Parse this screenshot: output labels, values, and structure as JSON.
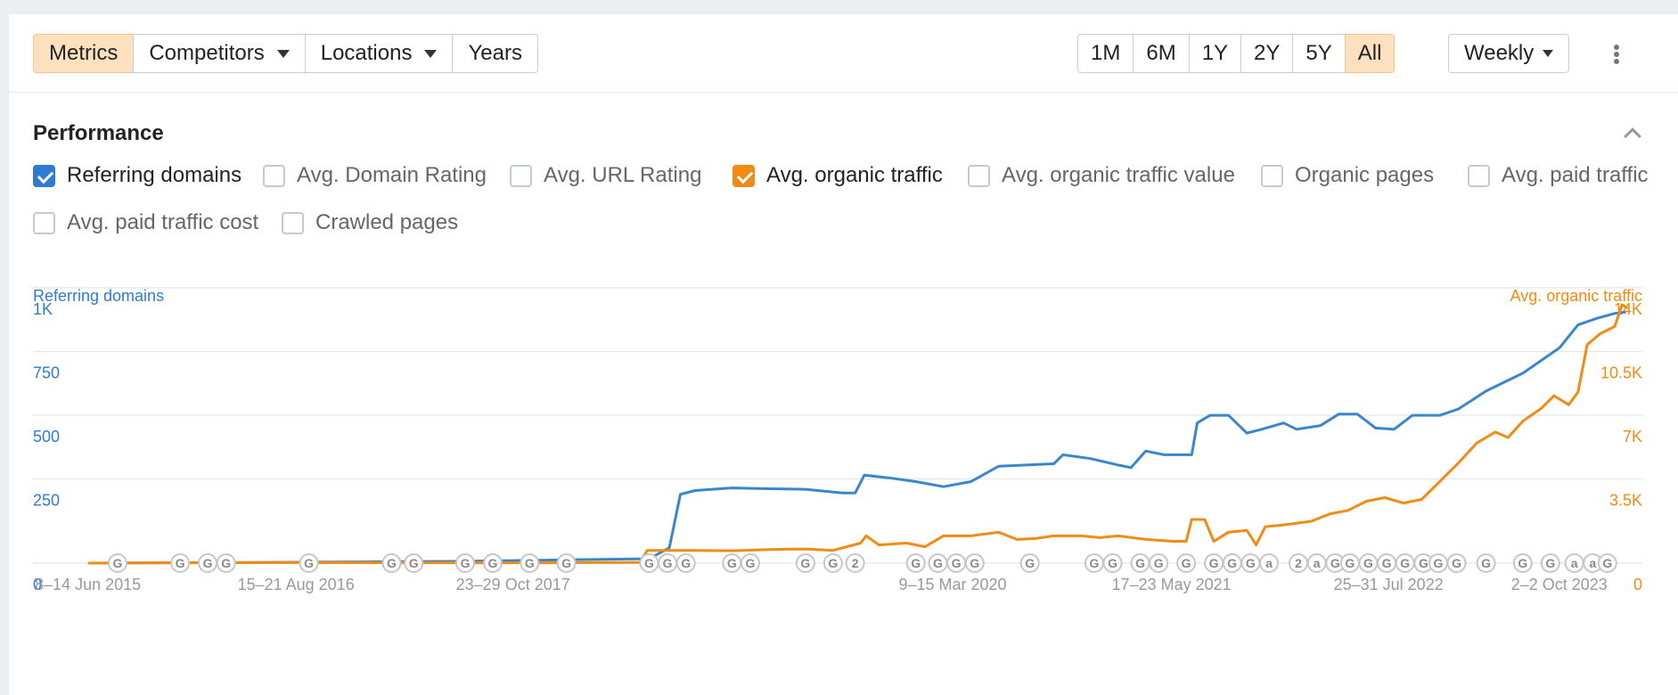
{
  "toolbar": {
    "view_tabs": [
      {
        "label": "Metrics",
        "active": true,
        "dropdown": false
      },
      {
        "label": "Competitors",
        "active": false,
        "dropdown": true
      },
      {
        "label": "Locations",
        "active": false,
        "dropdown": true
      },
      {
        "label": "Years",
        "active": false,
        "dropdown": false
      }
    ],
    "ranges": [
      {
        "label": "1M",
        "active": false
      },
      {
        "label": "6M",
        "active": false
      },
      {
        "label": "1Y",
        "active": false
      },
      {
        "label": "2Y",
        "active": false
      },
      {
        "label": "5Y",
        "active": false
      },
      {
        "label": "All",
        "active": true
      }
    ],
    "interval": "Weekly",
    "more_icon": "kebab-vertical-icon",
    "active_color": "#fde0bd"
  },
  "section": {
    "title": "Performance",
    "collapse_icon": "chevron-up-icon"
  },
  "metrics": [
    {
      "label": "Referring domains",
      "checked": true,
      "color": "#2f7bd1"
    },
    {
      "label": "Avg. Domain Rating",
      "checked": false
    },
    {
      "label": "Avg. URL Rating",
      "checked": false
    },
    {
      "label": "Avg. organic traffic",
      "checked": true,
      "color": "#f08c13"
    },
    {
      "label": "Avg. organic traffic value",
      "checked": false
    },
    {
      "label": "Organic pages",
      "checked": false
    },
    {
      "label": "Avg. paid traffic",
      "checked": false
    },
    {
      "label": "Avg. paid traffic cost",
      "checked": false
    },
    {
      "label": "Crawled pages",
      "checked": false
    }
  ],
  "chart_data": {
    "type": "line",
    "ylabel": "Referring domains",
    "y2label": "Avg. organic traffic",
    "y_ticks": [
      "0",
      "250",
      "500",
      "750",
      "1K"
    ],
    "y2_ticks": [
      "0",
      "3.5K",
      "7K",
      "10.5K",
      "14K"
    ],
    "ylim": [
      0,
      1000
    ],
    "y2lim": [
      0,
      14000
    ],
    "x_tick_labels": [
      "8–14 Jun 2015",
      "15–21 Aug 2016",
      "23–29 Oct 2017",
      "9–15 Mar 2020",
      "17–23 May 2021",
      "25–31 Jul 2022",
      "2–2 Oct 2023"
    ],
    "x_tick_years": [
      2015.45,
      2016.63,
      2017.81,
      2020.2,
      2021.39,
      2022.57,
      2023.76
    ],
    "xlim": [
      2015.2,
      2023.95
    ],
    "grid": true,
    "series": [
      {
        "name": "Referring domains",
        "axis": "left",
        "color": "#3a86cc",
        "points": [
          [
            2015.5,
            0
          ],
          [
            2016.5,
            3
          ],
          [
            2017.5,
            7
          ],
          [
            2018.0,
            12
          ],
          [
            2018.3,
            15
          ],
          [
            2018.55,
            17
          ],
          [
            2018.66,
            60
          ],
          [
            2018.72,
            270
          ],
          [
            2018.8,
            285
          ],
          [
            2019.0,
            295
          ],
          [
            2019.2,
            292
          ],
          [
            2019.4,
            290
          ],
          [
            2019.6,
            275
          ],
          [
            2019.67,
            275
          ],
          [
            2019.72,
            345
          ],
          [
            2019.85,
            335
          ],
          [
            2020.0,
            320
          ],
          [
            2020.15,
            300
          ],
          [
            2020.3,
            320
          ],
          [
            2020.45,
            380
          ],
          [
            2020.6,
            385
          ],
          [
            2020.75,
            390
          ],
          [
            2020.8,
            425
          ],
          [
            2020.95,
            410
          ],
          [
            2021.1,
            385
          ],
          [
            2021.17,
            375
          ],
          [
            2021.25,
            440
          ],
          [
            2021.35,
            425
          ],
          [
            2021.45,
            425
          ],
          [
            2021.5,
            425
          ],
          [
            2021.53,
            550
          ],
          [
            2021.6,
            580
          ],
          [
            2021.7,
            580
          ],
          [
            2021.8,
            510
          ],
          [
            2021.88,
            525
          ],
          [
            2022.0,
            550
          ],
          [
            2022.07,
            525
          ],
          [
            2022.2,
            540
          ],
          [
            2022.3,
            585
          ],
          [
            2022.4,
            585
          ],
          [
            2022.5,
            530
          ],
          [
            2022.6,
            525
          ],
          [
            2022.7,
            580
          ],
          [
            2022.85,
            580
          ],
          [
            2022.95,
            605
          ],
          [
            2023.1,
            675
          ],
          [
            2023.3,
            745
          ],
          [
            2023.5,
            845
          ],
          [
            2023.6,
            935
          ],
          [
            2023.7,
            960
          ],
          [
            2023.8,
            980
          ],
          [
            2023.86,
            985
          ]
        ]
      },
      {
        "name": "Avg. organic traffic",
        "axis": "right",
        "color": "#f08c13",
        "points": [
          [
            2015.5,
            0
          ],
          [
            2016.5,
            30
          ],
          [
            2017.5,
            20
          ],
          [
            2018.0,
            20
          ],
          [
            2018.3,
            40
          ],
          [
            2018.5,
            40
          ],
          [
            2018.54,
            700
          ],
          [
            2018.8,
            700
          ],
          [
            2019.0,
            680
          ],
          [
            2019.2,
            750
          ],
          [
            2019.4,
            780
          ],
          [
            2019.55,
            700
          ],
          [
            2019.7,
            1100
          ],
          [
            2019.73,
            1500
          ],
          [
            2019.8,
            1000
          ],
          [
            2019.95,
            1100
          ],
          [
            2020.05,
            900
          ],
          [
            2020.15,
            1500
          ],
          [
            2020.3,
            1500
          ],
          [
            2020.45,
            1700
          ],
          [
            2020.55,
            1300
          ],
          [
            2020.65,
            1350
          ],
          [
            2020.75,
            1500
          ],
          [
            2020.9,
            1500
          ],
          [
            2021.0,
            1400
          ],
          [
            2021.1,
            1500
          ],
          [
            2021.25,
            1300
          ],
          [
            2021.4,
            1200
          ],
          [
            2021.47,
            1200
          ],
          [
            2021.5,
            2400
          ],
          [
            2021.57,
            2400
          ],
          [
            2021.62,
            1200
          ],
          [
            2021.7,
            1700
          ],
          [
            2021.8,
            1800
          ],
          [
            2021.85,
            1000
          ],
          [
            2021.9,
            2000
          ],
          [
            2022.0,
            2100
          ],
          [
            2022.15,
            2300
          ],
          [
            2022.25,
            2700
          ],
          [
            2022.35,
            2900
          ],
          [
            2022.45,
            3400
          ],
          [
            2022.55,
            3600
          ],
          [
            2022.65,
            3300
          ],
          [
            2022.75,
            3500
          ],
          [
            2022.85,
            4500
          ],
          [
            2022.95,
            5500
          ],
          [
            2023.05,
            6600
          ],
          [
            2023.15,
            7200
          ],
          [
            2023.22,
            6900
          ],
          [
            2023.3,
            7800
          ],
          [
            2023.4,
            8500
          ],
          [
            2023.47,
            9200
          ],
          [
            2023.55,
            8700
          ],
          [
            2023.6,
            9400
          ],
          [
            2023.65,
            12000
          ],
          [
            2023.72,
            12600
          ],
          [
            2023.8,
            13000
          ],
          [
            2023.84,
            14200
          ],
          [
            2023.87,
            14000
          ]
        ]
      }
    ],
    "annotations": [
      {
        "x": 2015.66,
        "label": "G"
      },
      {
        "x": 2016.0,
        "label": "G"
      },
      {
        "x": 2016.15,
        "label": "G"
      },
      {
        "x": 2016.25,
        "label": "G"
      },
      {
        "x": 2016.7,
        "label": "G"
      },
      {
        "x": 2017.15,
        "label": "G"
      },
      {
        "x": 2017.27,
        "label": "G"
      },
      {
        "x": 2017.55,
        "label": "G"
      },
      {
        "x": 2017.7,
        "label": "G"
      },
      {
        "x": 2017.9,
        "label": "G"
      },
      {
        "x": 2018.1,
        "label": "G"
      },
      {
        "x": 2018.55,
        "label": "G"
      },
      {
        "x": 2018.65,
        "label": "G"
      },
      {
        "x": 2018.75,
        "label": "G"
      },
      {
        "x": 2019.0,
        "label": "G"
      },
      {
        "x": 2019.1,
        "label": "G"
      },
      {
        "x": 2019.4,
        "label": "G"
      },
      {
        "x": 2019.55,
        "label": "G"
      },
      {
        "x": 2019.67,
        "label": "2"
      },
      {
        "x": 2020.0,
        "label": "G"
      },
      {
        "x": 2020.12,
        "label": "G"
      },
      {
        "x": 2020.22,
        "label": "G"
      },
      {
        "x": 2020.32,
        "label": "G"
      },
      {
        "x": 2020.62,
        "label": "G"
      },
      {
        "x": 2020.97,
        "label": "G"
      },
      {
        "x": 2021.07,
        "label": "G"
      },
      {
        "x": 2021.22,
        "label": "G"
      },
      {
        "x": 2021.32,
        "label": "G"
      },
      {
        "x": 2021.47,
        "label": "G"
      },
      {
        "x": 2021.62,
        "label": "G"
      },
      {
        "x": 2021.72,
        "label": "G"
      },
      {
        "x": 2021.82,
        "label": "G"
      },
      {
        "x": 2021.92,
        "label": "a"
      },
      {
        "x": 2022.08,
        "label": "2"
      },
      {
        "x": 2022.18,
        "label": "a"
      },
      {
        "x": 2022.28,
        "label": "G"
      },
      {
        "x": 2022.36,
        "label": "G"
      },
      {
        "x": 2022.46,
        "label": "G"
      },
      {
        "x": 2022.56,
        "label": "G"
      },
      {
        "x": 2022.66,
        "label": "G"
      },
      {
        "x": 2022.76,
        "label": "G"
      },
      {
        "x": 2022.84,
        "label": "G"
      },
      {
        "x": 2022.94,
        "label": "G"
      },
      {
        "x": 2023.1,
        "label": "G"
      },
      {
        "x": 2023.3,
        "label": "G"
      },
      {
        "x": 2023.45,
        "label": "G"
      },
      {
        "x": 2023.58,
        "label": "a"
      },
      {
        "x": 2023.68,
        "label": "a"
      },
      {
        "x": 2023.76,
        "label": "G"
      }
    ]
  }
}
